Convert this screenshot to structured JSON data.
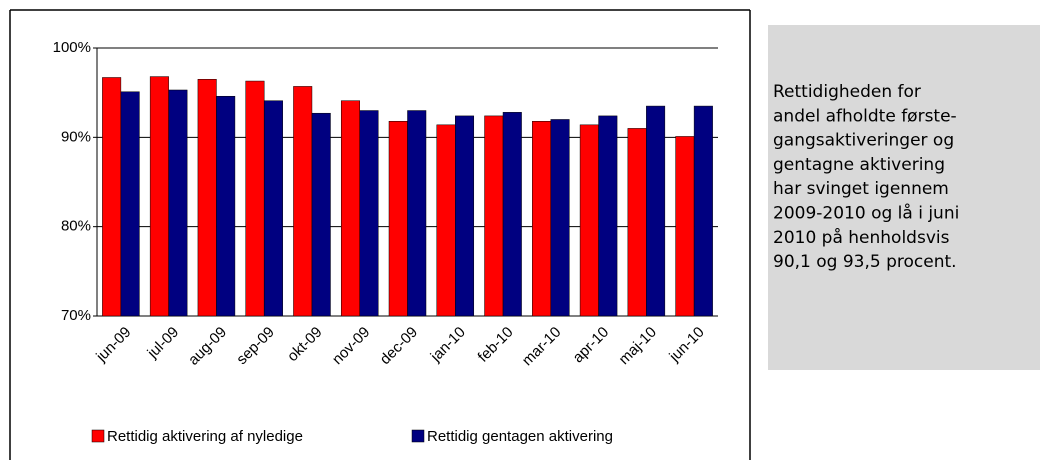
{
  "chart_data": {
    "type": "bar",
    "categories": [
      "jun-09",
      "jul-09",
      "aug-09",
      "sep-09",
      "okt-09",
      "nov-09",
      "dec-09",
      "jan-10",
      "feb-10",
      "mar-10",
      "apr-10",
      "maj-10",
      "jun-10"
    ],
    "series": [
      {
        "name": "Rettidig aktivering af nyledige",
        "color": "#ff0000",
        "values": [
          96.7,
          96.8,
          96.5,
          96.3,
          95.7,
          94.1,
          91.8,
          91.4,
          92.4,
          91.8,
          91.4,
          91.0,
          90.1
        ]
      },
      {
        "name": "Rettidig gentagen aktivering",
        "color": "#000080",
        "values": [
          95.1,
          95.3,
          94.6,
          94.1,
          92.7,
          93.0,
          93.0,
          92.4,
          92.8,
          92.0,
          92.4,
          93.5,
          93.5
        ]
      }
    ],
    "ylim": [
      70,
      100
    ],
    "yticks": [
      {
        "value": 70,
        "label": "70%"
      },
      {
        "value": 80,
        "label": "80%"
      },
      {
        "value": 90,
        "label": "90%"
      },
      {
        "value": 100,
        "label": "100%"
      }
    ],
    "grid": true
  },
  "text_box": {
    "lines": [
      "Rettidigheden for",
      "andel afholdte første-",
      "gangsaktiveringer og",
      "gentagne aktivering",
      "har svinget igennem",
      "2009-2010 og lå i juni",
      "2010 på henholdsvis",
      "90,1 og 93,5 procent."
    ]
  }
}
